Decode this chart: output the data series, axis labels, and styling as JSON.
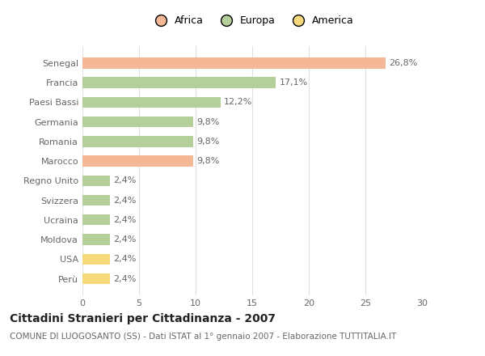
{
  "categories": [
    "Perù",
    "USA",
    "Moldova",
    "Ucraina",
    "Svizzera",
    "Regno Unito",
    "Marocco",
    "Romania",
    "Germania",
    "Paesi Bassi",
    "Francia",
    "Senegal"
  ],
  "values": [
    2.4,
    2.4,
    2.4,
    2.4,
    2.4,
    2.4,
    9.8,
    9.8,
    9.8,
    12.2,
    17.1,
    26.8
  ],
  "colors": [
    "#f5d97a",
    "#f5d97a",
    "#b5cf9a",
    "#b5cf9a",
    "#b5cf9a",
    "#b5cf9a",
    "#f5b896",
    "#b5cf9a",
    "#b5cf9a",
    "#b5cf9a",
    "#b5cf9a",
    "#f5b896"
  ],
  "labels": [
    "2,4%",
    "2,4%",
    "2,4%",
    "2,4%",
    "2,4%",
    "2,4%",
    "9,8%",
    "9,8%",
    "9,8%",
    "12,2%",
    "17,1%",
    "26,8%"
  ],
  "legend": [
    {
      "label": "Africa",
      "color": "#f5b896"
    },
    {
      "label": "Europa",
      "color": "#b5cf9a"
    },
    {
      "label": "America",
      "color": "#f5d97a"
    }
  ],
  "xlim": [
    0,
    30
  ],
  "xticks": [
    0,
    5,
    10,
    15,
    20,
    25,
    30
  ],
  "title": "Cittadini Stranieri per Cittadinanza - 2007",
  "subtitle": "COMUNE DI LUOGOSANTO (SS) - Dati ISTAT al 1° gennaio 2007 - Elaborazione TUTTITALIA.IT",
  "background_color": "#ffffff",
  "grid_color": "#e0e0e0",
  "bar_height": 0.55,
  "title_fontsize": 10,
  "subtitle_fontsize": 7.5,
  "label_fontsize": 8,
  "tick_fontsize": 8,
  "legend_fontsize": 9
}
